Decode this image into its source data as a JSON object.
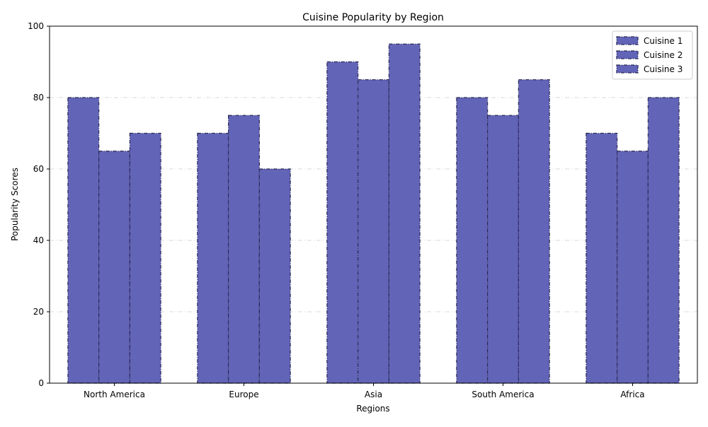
{
  "chart_data": {
    "type": "bar",
    "title": "Cuisine Popularity by Region",
    "xlabel": "Regions",
    "ylabel": "Popularity Scores",
    "categories": [
      "North America",
      "Europe",
      "Asia",
      "South America",
      "Africa"
    ],
    "series": [
      {
        "name": "Cuisine 1",
        "values": [
          80,
          70,
          90,
          80,
          70
        ]
      },
      {
        "name": "Cuisine 2",
        "values": [
          65,
          75,
          85,
          75,
          65
        ]
      },
      {
        "name": "Cuisine 3",
        "values": [
          70,
          60,
          95,
          85,
          80
        ]
      }
    ],
    "ylim": [
      0,
      100
    ],
    "yticks": [
      0,
      20,
      40,
      60,
      80,
      100
    ],
    "grid": "y",
    "legend_position": "top-right",
    "colors": {
      "bar_fill": "#6264b7",
      "bar_edge": "#2a2a55",
      "grid": "#cccccc"
    }
  }
}
